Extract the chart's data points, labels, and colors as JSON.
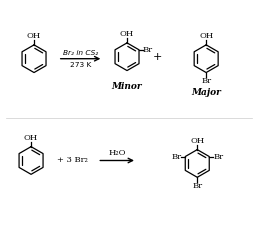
{
  "bg_color": "#ffffff",
  "fig_width": 2.58,
  "fig_height": 2.36,
  "dpi": 100,
  "reaction1": {
    "reagent_arrow_label_top": "Br₂ in CS₂",
    "reagent_arrow_label_bottom": "273 K",
    "plus_sign": "+",
    "minor_label": "Minor",
    "major_label": "Major"
  },
  "reaction2": {
    "reagent": "+ 3 Br₂",
    "arrow_label": "H₂O"
  }
}
